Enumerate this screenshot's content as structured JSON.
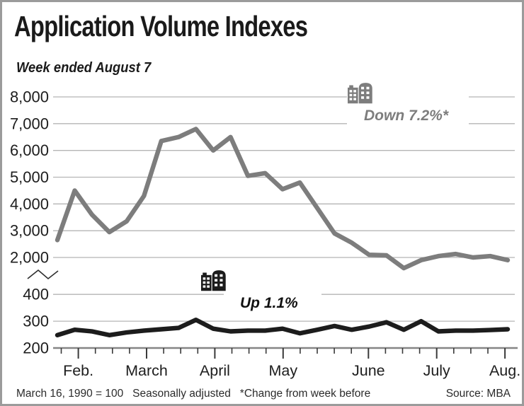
{
  "window": {
    "background": "#ffffff",
    "border_color": "#9b9b9b"
  },
  "header": {
    "title": "Application Volume Indexes",
    "subtitle": "Week ended August 7"
  },
  "footer": {
    "note": "March 16, 1990 = 100   Seasonally adjusted   *Change from week before",
    "source": "Source: MBA"
  },
  "chart_data": {
    "type": "line",
    "title": "Application Volume Indexes",
    "subtitle": "Week ended August 7",
    "grid": true,
    "x_axis": {
      "tick_unit": "week",
      "month_labels": [
        "Feb.",
        "March",
        "April",
        "May",
        "June",
        "July",
        "Aug."
      ]
    },
    "y_axis": {
      "broken": true,
      "top_section": {
        "range": [
          2000,
          8000
        ],
        "tick_labels": [
          "8,000",
          "7,000",
          "6,000",
          "5,000",
          "4,000",
          "3,000",
          "2,000"
        ],
        "tick_values": [
          8000,
          7000,
          6000,
          5000,
          4000,
          3000,
          2000
        ]
      },
      "bottom_section": {
        "range": [
          200,
          400
        ],
        "tick_labels": [
          "400",
          "300",
          "200"
        ],
        "tick_values": [
          400,
          300,
          200
        ]
      }
    },
    "series": [
      {
        "name": "upper-index",
        "section": "top",
        "color": "#7d7d7d",
        "icon": "buildings-icon",
        "annotation": "Down 7.2%*",
        "values": [
          2650,
          4500,
          3600,
          2950,
          3350,
          4300,
          6350,
          6500,
          6800,
          6000,
          6500,
          5050,
          5150,
          4550,
          4800,
          3850,
          2900,
          2550,
          2100,
          2080,
          1600,
          1900,
          2050,
          2130,
          2000,
          2050,
          1900
        ]
      },
      {
        "name": "lower-index",
        "section": "bottom",
        "color": "#1c1c1c",
        "icon": "buildings-icon",
        "annotation": "Up 1.1%",
        "values": [
          248,
          268,
          262,
          248,
          258,
          265,
          270,
          275,
          305,
          272,
          262,
          265,
          265,
          272,
          255,
          268,
          282,
          268,
          280,
          296,
          268,
          300,
          262,
          265,
          265,
          267,
          270
        ]
      }
    ]
  }
}
